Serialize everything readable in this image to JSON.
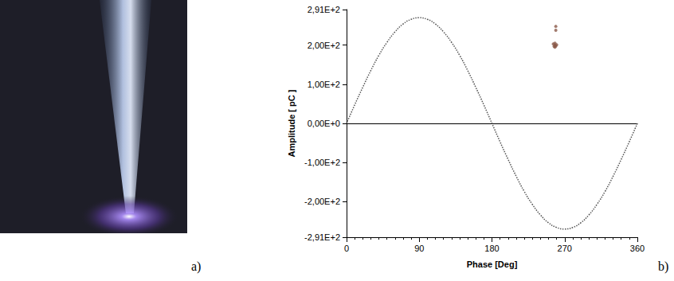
{
  "panel_labels": [
    "a)",
    "b)"
  ],
  "chart_data": {
    "type": "line",
    "xlabel": "Phase [Deg]",
    "ylabel": "Amplitude [ pC ]",
    "xlim": [
      0,
      360
    ],
    "xticks": [
      0,
      90,
      180,
      270,
      360
    ],
    "ylim": [
      -291,
      291
    ],
    "yticks": [
      {
        "value": -291,
        "label": "-2,91E+2"
      },
      {
        "value": -200,
        "label": "-2,00E+2"
      },
      {
        "value": -100,
        "label": "-1,00E+2"
      },
      {
        "value": 0,
        "label": "0,00E+0"
      },
      {
        "value": 100,
        "label": "1,00E+2"
      },
      {
        "value": 200,
        "label": "2,00E+2"
      },
      {
        "value": 291,
        "label": "2,91E+2"
      }
    ],
    "grid": false,
    "series": [
      {
        "type": "line",
        "color": "#555555",
        "line_style": "dotted",
        "x": [
          0,
          10,
          20,
          30,
          40,
          50,
          60,
          70,
          80,
          90,
          100,
          110,
          120,
          130,
          140,
          150,
          160,
          170,
          180,
          190,
          200,
          210,
          220,
          230,
          240,
          250,
          260,
          270,
          280,
          290,
          300,
          310,
          320,
          330,
          340,
          350,
          360
        ],
        "values": [
          0,
          47,
          92,
          135,
          174,
          207,
          234,
          254,
          266,
          270,
          266,
          254,
          234,
          207,
          174,
          135,
          92,
          47,
          0,
          -47,
          -92,
          -135,
          -174,
          -207,
          -234,
          -254,
          -266,
          -270,
          -266,
          -254,
          -234,
          -207,
          -174,
          -135,
          -92,
          -47,
          0
        ]
      },
      {
        "type": "scatter",
        "color": "#8b5a4a",
        "marker": "circle",
        "x": [
          256,
          257,
          258,
          258,
          259,
          260,
          258,
          259,
          259
        ],
        "values": [
          203,
          197,
          200,
          205,
          198,
          201,
          195,
          238,
          248
        ]
      }
    ]
  }
}
